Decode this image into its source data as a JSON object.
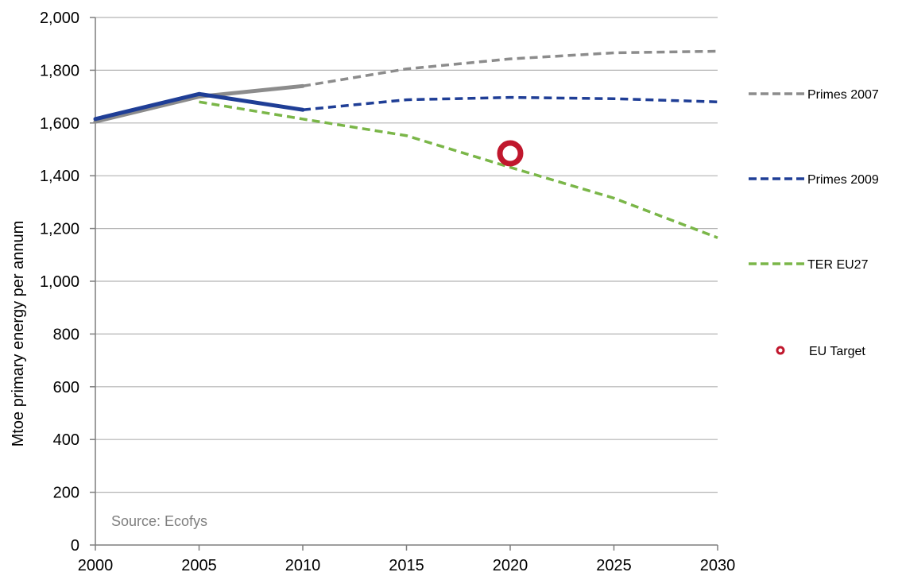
{
  "chart_data": {
    "type": "line",
    "title": "",
    "xlabel": "",
    "ylabel": "Mtoe primary energy per annum",
    "xlim": [
      2000,
      2030
    ],
    "ylim": [
      0,
      2000
    ],
    "x_ticks": [
      "2000",
      "2005",
      "2010",
      "2015",
      "2020",
      "2025",
      "2030"
    ],
    "y_ticks": [
      "0",
      "200",
      "400",
      "600",
      "800",
      "1,000",
      "1,200",
      "1,400",
      "1,600",
      "1,800",
      "2,000"
    ],
    "grid": "horizontal",
    "legend_position": "right",
    "source": "Source: Ecofys",
    "series": [
      {
        "name": "Primes 2007",
        "color": "#8c8c8c",
        "historical": {
          "x": [
            2000,
            2005,
            2010
          ],
          "y": [
            1605,
            1700,
            1740
          ]
        },
        "projection": {
          "x": [
            2010,
            2015,
            2020,
            2025,
            2030
          ],
          "y": [
            1740,
            1805,
            1843,
            1866,
            1872
          ]
        }
      },
      {
        "name": "Primes 2009",
        "color": "#1f3e96",
        "historical": {
          "x": [
            2000,
            2005,
            2010
          ],
          "y": [
            1615,
            1710,
            1650
          ]
        },
        "projection": {
          "x": [
            2010,
            2015,
            2020,
            2025,
            2030
          ],
          "y": [
            1650,
            1688,
            1697,
            1692,
            1680
          ]
        }
      },
      {
        "name": "TER EU27",
        "color": "#7ab648",
        "historical": null,
        "projection": {
          "x": [
            2005,
            2010,
            2015,
            2020,
            2025,
            2030
          ],
          "y": [
            1680,
            1615,
            1552,
            1432,
            1315,
            1165
          ]
        }
      }
    ],
    "points": [
      {
        "name": "EU Target",
        "color": "#c0172d",
        "x": 2020,
        "y": 1485
      }
    ]
  }
}
